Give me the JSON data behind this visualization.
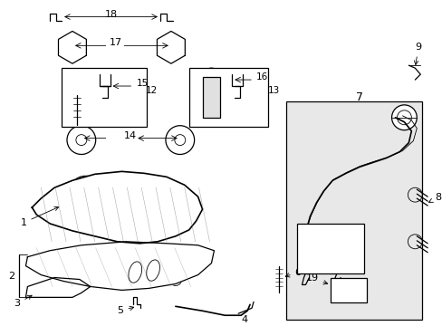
{
  "background_color": "#ffffff",
  "line_color": "#000000",
  "fill_light": "#f0f0f0",
  "fill_mid": "#e0e0e0",
  "panel_fill": "#e8e8e8",
  "figsize": [
    4.89,
    3.6
  ],
  "dpi": 100
}
